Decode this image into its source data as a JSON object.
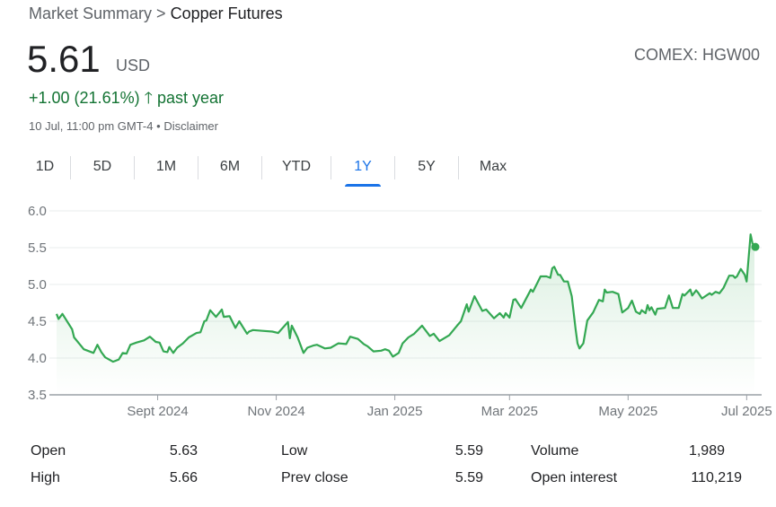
{
  "breadcrumb": {
    "root": "Market Summary",
    "separator": ">",
    "current": "Copper Futures"
  },
  "quote": {
    "price": "5.61",
    "currency": "USD",
    "exchange": "COMEX: HGW00",
    "change": "+1.00 (21.61%)",
    "change_arrow": "arrow-up-icon",
    "period": "past year",
    "timestamp": "10 Jul, 11:00 pm GMT-4",
    "dot": "•",
    "disclaimer": "Disclaimer"
  },
  "tabs": [
    {
      "label": "1D"
    },
    {
      "label": "5D"
    },
    {
      "label": "1M"
    },
    {
      "label": "6M"
    },
    {
      "label": "YTD"
    },
    {
      "label": "1Y",
      "active": true
    },
    {
      "label": "5Y"
    },
    {
      "label": "Max"
    }
  ],
  "colors": {
    "line": "#34a853",
    "positive": "#137333",
    "accent": "#1a73e8"
  },
  "chart_data": {
    "type": "line",
    "ylim": [
      3.5,
      6.0
    ],
    "yticks": [
      "3.5",
      "4.0",
      "4.5",
      "5.0",
      "5.5",
      "6.0"
    ],
    "xticks": [
      {
        "label": "Sept 2024",
        "date": "2024-09-01"
      },
      {
        "label": "Nov 2024",
        "date": "2024-11-01"
      },
      {
        "label": "Jan 2025",
        "date": "2025-01-01"
      },
      {
        "label": "Mar 2025",
        "date": "2025-03-01"
      },
      {
        "label": "May 2025",
        "date": "2025-05-01"
      },
      {
        "label": "Jul 2025",
        "date": "2025-07-01"
      }
    ],
    "grid": true,
    "points": [
      [
        "2024-07-11",
        4.6
      ],
      [
        "2024-07-12",
        4.53
      ],
      [
        "2024-07-14",
        4.6
      ],
      [
        "2024-07-19",
        4.39
      ],
      [
        "2024-07-20",
        4.28
      ],
      [
        "2024-07-25",
        4.12
      ],
      [
        "2024-07-30",
        4.07
      ],
      [
        "2024-08-01",
        4.18
      ],
      [
        "2024-08-03",
        4.08
      ],
      [
        "2024-08-05",
        4.01
      ],
      [
        "2024-08-09",
        3.95
      ],
      [
        "2024-08-12",
        3.98
      ],
      [
        "2024-08-14",
        4.07
      ],
      [
        "2024-08-16",
        4.06
      ],
      [
        "2024-08-18",
        4.18
      ],
      [
        "2024-08-21",
        4.21
      ],
      [
        "2024-08-25",
        4.24
      ],
      [
        "2024-08-28",
        4.29
      ],
      [
        "2024-08-31",
        4.22
      ],
      [
        "2024-09-02",
        4.21
      ],
      [
        "2024-09-04",
        4.09
      ],
      [
        "2024-09-06",
        4.08
      ],
      [
        "2024-09-07",
        4.15
      ],
      [
        "2024-09-09",
        4.07
      ],
      [
        "2024-09-11",
        4.14
      ],
      [
        "2024-09-14",
        4.2
      ],
      [
        "2024-09-17",
        4.28
      ],
      [
        "2024-09-21",
        4.34
      ],
      [
        "2024-09-23",
        4.35
      ],
      [
        "2024-09-25",
        4.5
      ],
      [
        "2024-09-26",
        4.51
      ],
      [
        "2024-09-28",
        4.65
      ],
      [
        "2024-10-01",
        4.56
      ],
      [
        "2024-10-04",
        4.66
      ],
      [
        "2024-10-05",
        4.56
      ],
      [
        "2024-10-08",
        4.57
      ],
      [
        "2024-10-11",
        4.41
      ],
      [
        "2024-10-13",
        4.5
      ],
      [
        "2024-10-17",
        4.33
      ],
      [
        "2024-10-18",
        4.36
      ],
      [
        "2024-10-20",
        4.38
      ],
      [
        "2024-10-25",
        4.37
      ],
      [
        "2024-10-30",
        4.36
      ],
      [
        "2024-11-02",
        4.34
      ],
      [
        "2024-11-07",
        4.49
      ],
      [
        "2024-11-08",
        4.27
      ],
      [
        "2024-11-09",
        4.44
      ],
      [
        "2024-11-12",
        4.28
      ],
      [
        "2024-11-15",
        4.07
      ],
      [
        "2024-11-17",
        4.14
      ],
      [
        "2024-11-20",
        4.17
      ],
      [
        "2024-11-22",
        4.18
      ],
      [
        "2024-11-26",
        4.13
      ],
      [
        "2024-11-29",
        4.14
      ],
      [
        "2024-12-03",
        4.2
      ],
      [
        "2024-12-07",
        4.19
      ],
      [
        "2024-12-09",
        4.29
      ],
      [
        "2024-12-13",
        4.26
      ],
      [
        "2024-12-16",
        4.19
      ],
      [
        "2024-12-18",
        4.16
      ],
      [
        "2024-12-21",
        4.09
      ],
      [
        "2024-12-25",
        4.1
      ],
      [
        "2024-12-27",
        4.12
      ],
      [
        "2024-12-29",
        4.1
      ],
      [
        "2024-12-31",
        4.02
      ],
      [
        "2025-01-03",
        4.07
      ],
      [
        "2025-01-05",
        4.2
      ],
      [
        "2025-01-08",
        4.28
      ],
      [
        "2025-01-11",
        4.33
      ],
      [
        "2025-01-15",
        4.44
      ],
      [
        "2025-01-19",
        4.3
      ],
      [
        "2025-01-21",
        4.33
      ],
      [
        "2025-01-24",
        4.23
      ],
      [
        "2025-01-29",
        4.31
      ],
      [
        "2025-02-02",
        4.44
      ],
      [
        "2025-02-04",
        4.5
      ],
      [
        "2025-02-07",
        4.73
      ],
      [
        "2025-02-08",
        4.63
      ],
      [
        "2025-02-11",
        4.84
      ],
      [
        "2025-02-15",
        4.64
      ],
      [
        "2025-02-17",
        4.66
      ],
      [
        "2025-02-21",
        4.54
      ],
      [
        "2025-02-24",
        4.61
      ],
      [
        "2025-02-26",
        4.55
      ],
      [
        "2025-02-27",
        4.61
      ],
      [
        "2025-03-01",
        4.55
      ],
      [
        "2025-03-03",
        4.79
      ],
      [
        "2025-03-04",
        4.8
      ],
      [
        "2025-03-07",
        4.68
      ],
      [
        "2025-03-12",
        4.93
      ],
      [
        "2025-03-13",
        4.9
      ],
      [
        "2025-03-17",
        5.11
      ],
      [
        "2025-03-20",
        5.11
      ],
      [
        "2025-03-22",
        5.09
      ],
      [
        "2025-03-23",
        5.22
      ],
      [
        "2025-03-24",
        5.24
      ],
      [
        "2025-03-26",
        5.13
      ],
      [
        "2025-03-27",
        5.13
      ],
      [
        "2025-03-29",
        5.04
      ],
      [
        "2025-03-31",
        5.04
      ],
      [
        "2025-04-02",
        4.84
      ],
      [
        "2025-04-04",
        4.39
      ],
      [
        "2025-04-05",
        4.2
      ],
      [
        "2025-04-06",
        4.13
      ],
      [
        "2025-04-08",
        4.2
      ],
      [
        "2025-04-10",
        4.51
      ],
      [
        "2025-04-13",
        4.62
      ],
      [
        "2025-04-16",
        4.79
      ],
      [
        "2025-04-18",
        4.77
      ],
      [
        "2025-04-19",
        4.93
      ],
      [
        "2025-04-20",
        4.89
      ],
      [
        "2025-04-23",
        4.9
      ],
      [
        "2025-04-26",
        4.87
      ],
      [
        "2025-04-28",
        4.62
      ],
      [
        "2025-05-01",
        4.68
      ],
      [
        "2025-05-03",
        4.78
      ],
      [
        "2025-05-05",
        4.63
      ],
      [
        "2025-05-07",
        4.6
      ],
      [
        "2025-05-08",
        4.65
      ],
      [
        "2025-05-10",
        4.61
      ],
      [
        "2025-05-11",
        4.72
      ],
      [
        "2025-05-12",
        4.65
      ],
      [
        "2025-05-13",
        4.69
      ],
      [
        "2025-05-15",
        4.59
      ],
      [
        "2025-05-16",
        4.67
      ],
      [
        "2025-05-20",
        4.68
      ],
      [
        "2025-05-22",
        4.85
      ],
      [
        "2025-05-24",
        4.68
      ],
      [
        "2025-05-27",
        4.68
      ],
      [
        "2025-05-29",
        4.87
      ],
      [
        "2025-05-30",
        4.85
      ],
      [
        "2025-06-02",
        4.93
      ],
      [
        "2025-06-03",
        4.85
      ],
      [
        "2025-06-05",
        4.92
      ],
      [
        "2025-06-06",
        4.89
      ],
      [
        "2025-06-08",
        4.81
      ],
      [
        "2025-06-12",
        4.88
      ],
      [
        "2025-06-13",
        4.86
      ],
      [
        "2025-06-15",
        4.9
      ],
      [
        "2025-06-17",
        4.88
      ],
      [
        "2025-06-19",
        4.95
      ],
      [
        "2025-06-22",
        5.12
      ],
      [
        "2025-06-24",
        5.12
      ],
      [
        "2025-06-25",
        5.09
      ],
      [
        "2025-06-26",
        5.11
      ],
      [
        "2025-06-28",
        5.21
      ],
      [
        "2025-06-30",
        5.13
      ],
      [
        "2025-07-01",
        5.04
      ],
      [
        "2025-07-03",
        5.68
      ],
      [
        "2025-07-04",
        5.56
      ],
      [
        "2025-07-05",
        5.51
      ]
    ]
  },
  "stats": [
    {
      "label": "Open",
      "value": "5.63"
    },
    {
      "label": "Low",
      "value": "5.59"
    },
    {
      "label": "Volume",
      "value": "1,989"
    },
    {
      "label": "High",
      "value": "5.66"
    },
    {
      "label": "Prev close",
      "value": "5.59"
    },
    {
      "label": "Open interest",
      "value": "110,219"
    }
  ]
}
